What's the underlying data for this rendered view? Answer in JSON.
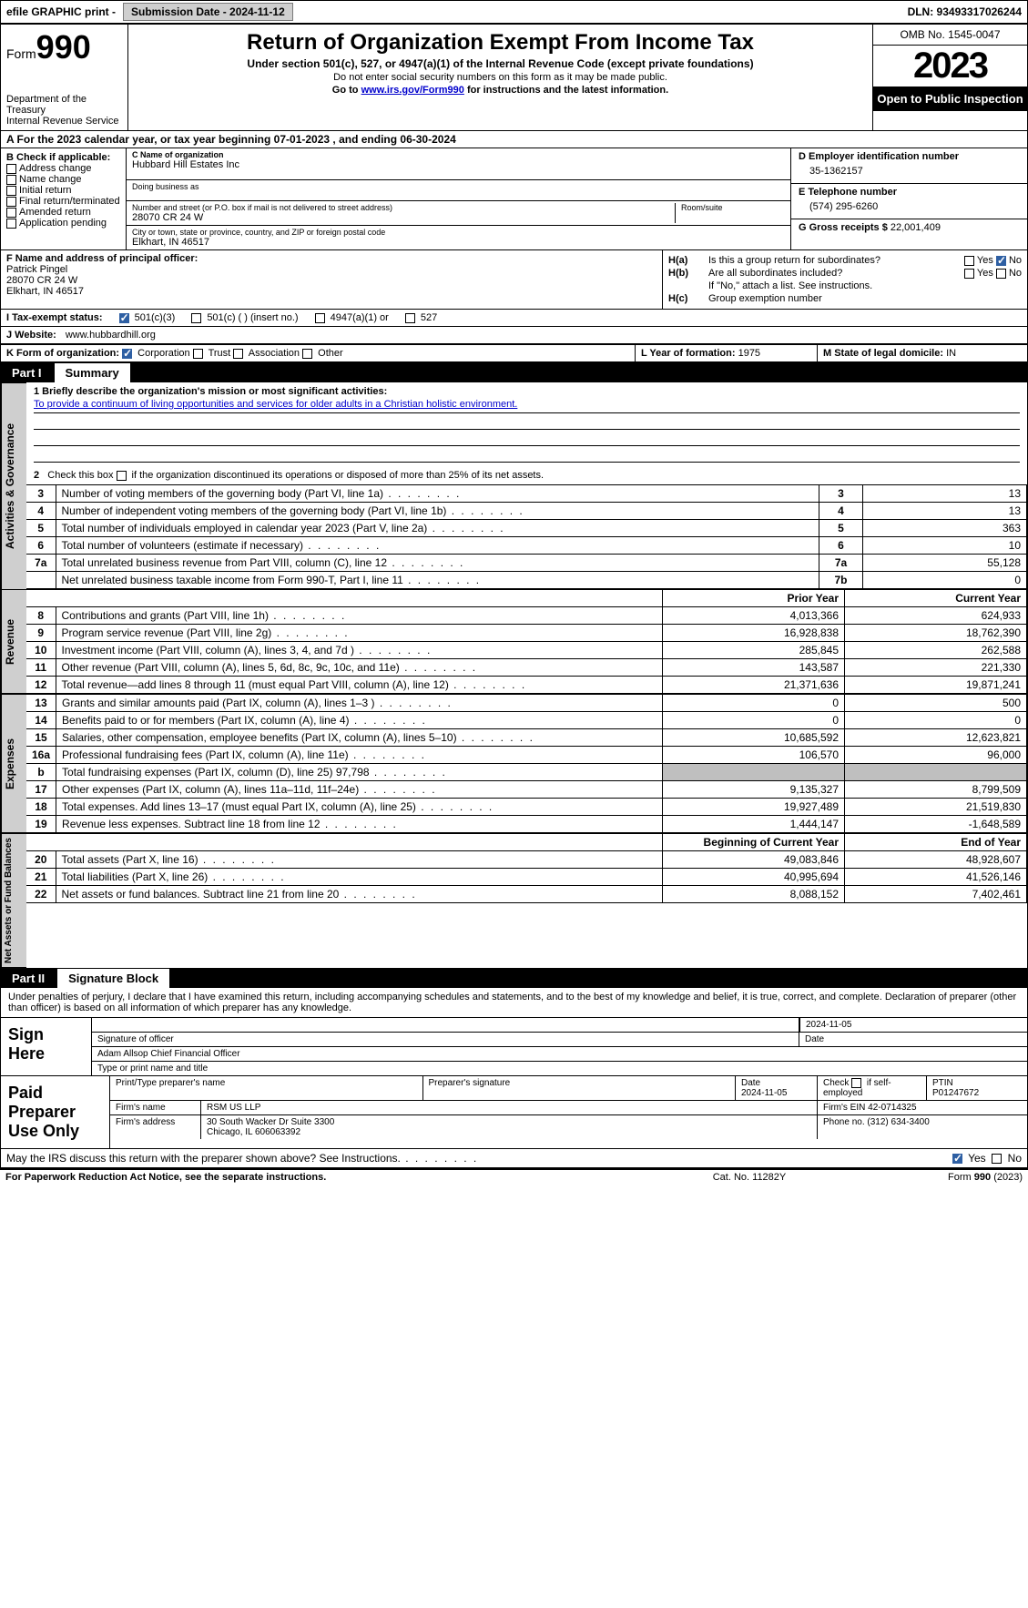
{
  "topbar": {
    "efile": "efile GRAPHIC print - ",
    "submission_label": "Submission Date - 2024-11-12",
    "dln_label": "DLN: 93493317026244"
  },
  "header": {
    "form_label": "Form",
    "form_number": "990",
    "dept": "Department of the Treasury",
    "irs": "Internal Revenue Service",
    "title": "Return of Organization Exempt From Income Tax",
    "sub1": "Under section 501(c), 527, or 4947(a)(1) of the Internal Revenue Code (except private foundations)",
    "sub2": "Do not enter social security numbers on this form as it may be made public.",
    "sub3_pre": "Go to ",
    "sub3_link": "www.irs.gov/Form990",
    "sub3_post": " for instructions and the latest information.",
    "omb": "OMB No. 1545-0047",
    "year": "2023",
    "open_pub": "Open to Public Inspection"
  },
  "row_a": {
    "text_pre": "A For the 2023 calendar year, or tax year beginning ",
    "begin": "07-01-2023",
    "mid": " , and ending ",
    "end": "06-30-2024"
  },
  "box_b": {
    "label": "B Check if applicable:",
    "opts": [
      "Address change",
      "Name change",
      "Initial return",
      "Final return/terminated",
      "Amended return",
      "Application pending"
    ]
  },
  "box_c": {
    "name_lbl": "C Name of organization",
    "name": "Hubbard Hill Estates Inc",
    "dba_lbl": "Doing business as",
    "dba": "",
    "addr_lbl": "Number and street (or P.O. box if mail is not delivered to street address)",
    "addr": "28070 CR 24 W",
    "room_lbl": "Room/suite",
    "city_lbl": "City or town, state or province, country, and ZIP or foreign postal code",
    "city": "Elkhart, IN  46517"
  },
  "box_d": {
    "lbl": "D Employer identification number",
    "val": "35-1362157"
  },
  "box_e": {
    "lbl": "E Telephone number",
    "val": "(574) 295-6260"
  },
  "box_g": {
    "lbl": "G Gross receipts $",
    "val": "22,001,409"
  },
  "box_f": {
    "lbl": "F  Name and address of principal officer:",
    "name": "Patrick Pingel",
    "addr1": "28070 CR 24 W",
    "addr2": "Elkhart, IN  46517"
  },
  "box_h": {
    "a_lbl": "H(a)",
    "a_txt": "Is this a group return for subordinates?",
    "a_yes": "Yes",
    "a_no": "No",
    "b_lbl": "H(b)",
    "b_txt": "Are all subordinates included?",
    "b_note": "If \"No,\" attach a list. See instructions.",
    "c_lbl": "H(c)",
    "c_txt": "Group exemption number"
  },
  "box_i": {
    "lbl": "I  Tax-exempt status:",
    "o1": "501(c)(3)",
    "o2": "501(c) (  ) (insert no.)",
    "o3": "4947(a)(1) or",
    "o4": "527"
  },
  "box_j": {
    "lbl": "J  Website:",
    "val": "www.hubbardhill.org"
  },
  "box_k": {
    "lbl": "K Form of organization:",
    "o1": "Corporation",
    "o2": "Trust",
    "o3": "Association",
    "o4": "Other"
  },
  "box_l": {
    "lbl": "L Year of formation:",
    "val": "1975"
  },
  "box_m": {
    "lbl": "M State of legal domicile:",
    "val": "IN"
  },
  "part1": {
    "num": "Part I",
    "title": "Summary"
  },
  "mission": {
    "lbl": "1  Briefly describe the organization's mission or most significant activities:",
    "text": "To provide a continuum of living opportunities and services for older adults in a Christian holistic environment."
  },
  "line2": "2   Check this box      if the organization discontinued its operations or disposed of more than 25% of its net assets.",
  "gov_lines": [
    {
      "n": "3",
      "d": "Number of voting members of the governing body (Part VI, line 1a)",
      "b": "3",
      "v": "13"
    },
    {
      "n": "4",
      "d": "Number of independent voting members of the governing body (Part VI, line 1b)",
      "b": "4",
      "v": "13"
    },
    {
      "n": "5",
      "d": "Total number of individuals employed in calendar year 2023 (Part V, line 2a)",
      "b": "5",
      "v": "363"
    },
    {
      "n": "6",
      "d": "Total number of volunteers (estimate if necessary)",
      "b": "6",
      "v": "10"
    },
    {
      "n": "7a",
      "d": "Total unrelated business revenue from Part VIII, column (C), line 12",
      "b": "7a",
      "v": "55,128"
    },
    {
      "n": "",
      "d": "Net unrelated business taxable income from Form 990-T, Part I, line 11",
      "b": "7b",
      "v": "0"
    }
  ],
  "rev_hdr": {
    "prior": "Prior Year",
    "curr": "Current Year"
  },
  "rev_lines": [
    {
      "n": "8",
      "d": "Contributions and grants (Part VIII, line 1h)",
      "p": "4,013,366",
      "c": "624,933"
    },
    {
      "n": "9",
      "d": "Program service revenue (Part VIII, line 2g)",
      "p": "16,928,838",
      "c": "18,762,390"
    },
    {
      "n": "10",
      "d": "Investment income (Part VIII, column (A), lines 3, 4, and 7d )",
      "p": "285,845",
      "c": "262,588"
    },
    {
      "n": "11",
      "d": "Other revenue (Part VIII, column (A), lines 5, 6d, 8c, 9c, 10c, and 11e)",
      "p": "143,587",
      "c": "221,330"
    },
    {
      "n": "12",
      "d": "Total revenue—add lines 8 through 11 (must equal Part VIII, column (A), line 12)",
      "p": "21,371,636",
      "c": "19,871,241"
    }
  ],
  "exp_lines": [
    {
      "n": "13",
      "d": "Grants and similar amounts paid (Part IX, column (A), lines 1–3 )",
      "p": "0",
      "c": "500"
    },
    {
      "n": "14",
      "d": "Benefits paid to or for members (Part IX, column (A), line 4)",
      "p": "0",
      "c": "0"
    },
    {
      "n": "15",
      "d": "Salaries, other compensation, employee benefits (Part IX, column (A), lines 5–10)",
      "p": "10,685,592",
      "c": "12,623,821"
    },
    {
      "n": "16a",
      "d": "Professional fundraising fees (Part IX, column (A), line 11e)",
      "p": "106,570",
      "c": "96,000"
    },
    {
      "n": "b",
      "d": "Total fundraising expenses (Part IX, column (D), line 25) 97,798",
      "p": "",
      "c": "",
      "shade": true
    },
    {
      "n": "17",
      "d": "Other expenses (Part IX, column (A), lines 11a–11d, 11f–24e)",
      "p": "9,135,327",
      "c": "8,799,509"
    },
    {
      "n": "18",
      "d": "Total expenses. Add lines 13–17 (must equal Part IX, column (A), line 25)",
      "p": "19,927,489",
      "c": "21,519,830"
    },
    {
      "n": "19",
      "d": "Revenue less expenses. Subtract line 18 from line 12",
      "p": "1,444,147",
      "c": "-1,648,589"
    }
  ],
  "na_hdr": {
    "prior": "Beginning of Current Year",
    "curr": "End of Year"
  },
  "na_lines": [
    {
      "n": "20",
      "d": "Total assets (Part X, line 16)",
      "p": "49,083,846",
      "c": "48,928,607"
    },
    {
      "n": "21",
      "d": "Total liabilities (Part X, line 26)",
      "p": "40,995,694",
      "c": "41,526,146"
    },
    {
      "n": "22",
      "d": "Net assets or fund balances. Subtract line 21 from line 20",
      "p": "8,088,152",
      "c": "7,402,461"
    }
  ],
  "part2": {
    "num": "Part II",
    "title": "Signature Block"
  },
  "sig_intro": "Under penalties of perjury, I declare that I have examined this return, including accompanying schedules and statements, and to the best of my knowledge and belief, it is true, correct, and complete. Declaration of preparer (other than officer) is based on all information of which preparer has any knowledge.",
  "sign_here": {
    "lbl": "Sign Here",
    "date": "2024-11-05",
    "sig_lbl": "Signature of officer",
    "date_lbl": "Date",
    "name": "Adam Allsop  Chief Financial Officer",
    "name_lbl": "Type or print name and title"
  },
  "preparer": {
    "lbl": "Paid Preparer Use Only",
    "h1": "Print/Type preparer's name",
    "h2": "Preparer's signature",
    "h3": "Date",
    "h3v": "2024-11-05",
    "h4": "Check       if self-employed",
    "h5": "PTIN",
    "h5v": "P01247672",
    "firm_lbl": "Firm's name",
    "firm": "RSM US LLP",
    "ein_lbl": "Firm's EIN",
    "ein": "42-0714325",
    "addr_lbl": "Firm's address",
    "addr1": "30 South Wacker Dr Suite 3300",
    "addr2": "Chicago, IL  606063392",
    "phone_lbl": "Phone no.",
    "phone": "(312) 634-3400"
  },
  "discuss": {
    "text": "May the IRS discuss this return with the preparer shown above? See Instructions.",
    "yes": "Yes",
    "no": "No"
  },
  "footer": {
    "l": "For Paperwork Reduction Act Notice, see the separate instructions.",
    "m": "Cat. No. 11282Y",
    "r_pre": "Form ",
    "r_b": "990",
    "r_post": " (2023)"
  },
  "vtabs": {
    "gov": "Activities & Governance",
    "rev": "Revenue",
    "exp": "Expenses",
    "na": "Net Assets or Fund Balances"
  }
}
